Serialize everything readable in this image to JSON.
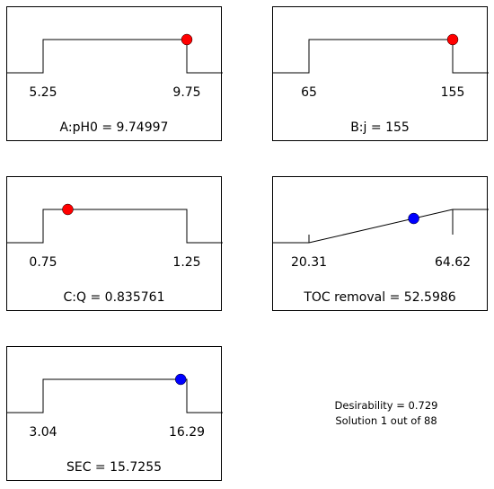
{
  "chart_data": [
    {
      "type": "desirability-ramp",
      "label": "A:pH0",
      "value_text": "9.74997",
      "value": 9.74997,
      "range": [
        5.25,
        9.75
      ],
      "tick_labels": [
        "5.25",
        "9.75"
      ],
      "goal": "in range",
      "marker_color": "#ff0000"
    },
    {
      "type": "desirability-ramp",
      "label": "B:j",
      "value_text": "155",
      "value": 155,
      "range": [
        65,
        155
      ],
      "tick_labels": [
        "65",
        "155"
      ],
      "goal": "in range",
      "marker_color": "#ff0000"
    },
    {
      "type": "desirability-ramp",
      "label": "C:Q",
      "value_text": "0.835761",
      "value": 0.835761,
      "range": [
        0.75,
        1.25
      ],
      "tick_labels": [
        "0.75",
        "1.25"
      ],
      "goal": "in range",
      "marker_color": "#ff0000"
    },
    {
      "type": "desirability-ramp",
      "label": "TOC removal",
      "value_text": "52.5986",
      "value": 52.5986,
      "range": [
        20.31,
        64.62
      ],
      "tick_labels": [
        "20.31",
        "64.62"
      ],
      "goal": "maximize",
      "marker_color": "#0000ff"
    },
    {
      "type": "desirability-ramp",
      "label": "SEC",
      "value_text": "15.7255",
      "value": 15.7255,
      "range": [
        3.04,
        16.29
      ],
      "tick_labels": [
        "3.04",
        "16.29"
      ],
      "goal": "in range",
      "marker_color": "#0000ff"
    }
  ],
  "summary": {
    "desirability": "Desirability = 0.729",
    "solution": "Solution 1 out of 88"
  }
}
